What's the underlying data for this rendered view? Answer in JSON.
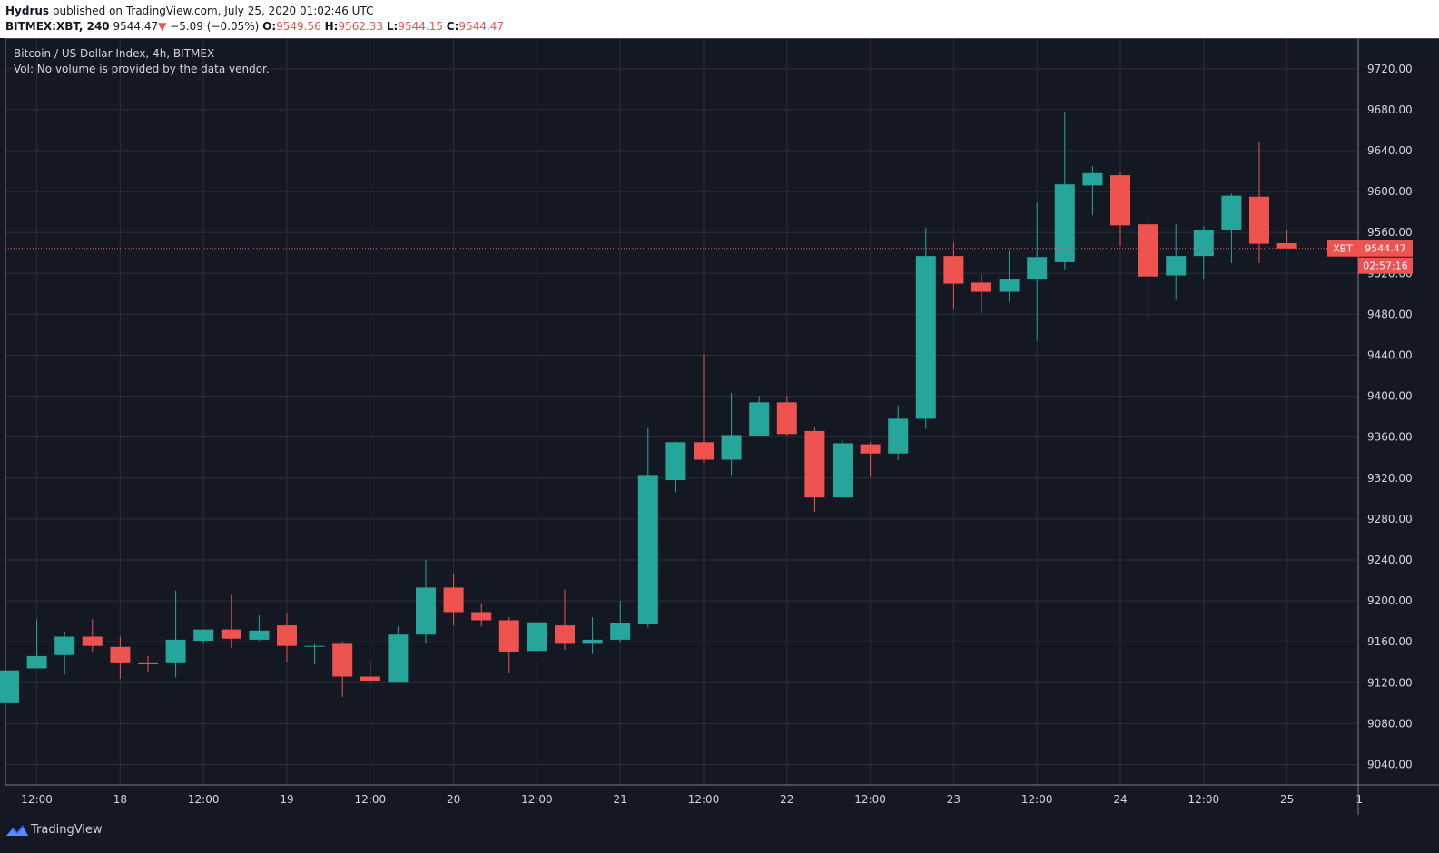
{
  "header": {
    "author": "Hydrus",
    "published_text": "published on TradingView.com, July 25, 2020 01:02:46 UTC",
    "symbol": "BITMEX:XBT, 240",
    "last": "9544.47",
    "change": "−5.09 (−0.05%)",
    "open_label": "O:",
    "open": "9549.56",
    "high_label": "H:",
    "high": "9562.33",
    "low_label": "L:",
    "low": "9544.15",
    "close_label": "C:",
    "close": "9544.47",
    "down_arrow": "▼"
  },
  "legend": {
    "title": "Bitcoin / US Dollar Index, 4h, BITMEX",
    "volume_note": "Vol: No volume is provided by the data vendor."
  },
  "footer": {
    "brand": "TradingView"
  },
  "colors": {
    "up": "#26a69a",
    "down": "#ef5350",
    "grid": "#2a2e39",
    "background": "#141823",
    "axis_text": "#d1d4dc"
  },
  "chart_data": {
    "type": "candlestick",
    "interval": "4h",
    "ylim": [
      9020,
      9750
    ],
    "y_ticks": [
      9040,
      9080,
      9120,
      9160,
      9200,
      9240,
      9280,
      9320,
      9360,
      9400,
      9440,
      9480,
      9520,
      9560,
      9600,
      9640,
      9680,
      9720
    ],
    "y_tick_labels": [
      "9040.00",
      "9080.00",
      "9120.00",
      "9160.00",
      "9200.00",
      "9240.00",
      "9280.00",
      "9320.00",
      "9360.00",
      "9400.00",
      "9440.00",
      "9480.00",
      "9520.00",
      "9560.00",
      "9600.00",
      "9640.00",
      "9680.00",
      "9720.00"
    ],
    "x_ticks": [
      {
        "index": 1,
        "label": "12:00"
      },
      {
        "index": 4,
        "label": "18"
      },
      {
        "index": 7,
        "label": "12:00"
      },
      {
        "index": 10,
        "label": "19"
      },
      {
        "index": 13,
        "label": "12:00"
      },
      {
        "index": 16,
        "label": "20"
      },
      {
        "index": 19,
        "label": "12:00"
      },
      {
        "index": 22,
        "label": "21"
      },
      {
        "index": 25,
        "label": "12:00"
      },
      {
        "index": 28,
        "label": "22"
      },
      {
        "index": 31,
        "label": "12:00"
      },
      {
        "index": 34,
        "label": "23"
      },
      {
        "index": 37,
        "label": "12:00"
      },
      {
        "index": 40,
        "label": "24"
      },
      {
        "index": 43,
        "label": "12:00"
      },
      {
        "index": 46,
        "label": "25"
      },
      {
        "index": 48.6,
        "label": "1"
      }
    ],
    "candles": [
      {
        "o": 9100,
        "h": 9132,
        "l": 9100,
        "c": 9132
      },
      {
        "o": 9134,
        "h": 9182,
        "l": 9134,
        "c": 9146
      },
      {
        "o": 9147,
        "h": 9170,
        "l": 9128,
        "c": 9165
      },
      {
        "o": 9165,
        "h": 9182,
        "l": 9150,
        "c": 9156
      },
      {
        "o": 9155,
        "h": 9165,
        "l": 9124,
        "c": 9139
      },
      {
        "o": 9139,
        "h": 9146,
        "l": 9130,
        "c": 9138
      },
      {
        "o": 9139,
        "h": 9210,
        "l": 9125,
        "c": 9162
      },
      {
        "o": 9161,
        "h": 9172,
        "l": 9158,
        "c": 9172
      },
      {
        "o": 9172,
        "h": 9206,
        "l": 9154,
        "c": 9163
      },
      {
        "o": 9162,
        "h": 9186,
        "l": 9161,
        "c": 9171
      },
      {
        "o": 9176,
        "h": 9188,
        "l": 9140,
        "c": 9156
      },
      {
        "o": 9156,
        "h": 9158,
        "l": 9138,
        "c": 9156
      },
      {
        "o": 9158,
        "h": 9160,
        "l": 9106,
        "c": 9126
      },
      {
        "o": 9126,
        "h": 9141,
        "l": 9118,
        "c": 9122
      },
      {
        "o": 9120,
        "h": 9175,
        "l": 9120,
        "c": 9167
      },
      {
        "o": 9167,
        "h": 9240,
        "l": 9158,
        "c": 9213
      },
      {
        "o": 9213,
        "h": 9226,
        "l": 9176,
        "c": 9189
      },
      {
        "o": 9189,
        "h": 9197,
        "l": 9175,
        "c": 9181
      },
      {
        "o": 9181,
        "h": 9184,
        "l": 9129,
        "c": 9150
      },
      {
        "o": 9151,
        "h": 9179,
        "l": 9144,
        "c": 9179
      },
      {
        "o": 9176,
        "h": 9211,
        "l": 9152,
        "c": 9158
      },
      {
        "o": 9158,
        "h": 9184,
        "l": 9148,
        "c": 9162
      },
      {
        "o": 9162,
        "h": 9200,
        "l": 9160,
        "c": 9178
      },
      {
        "o": 9177,
        "h": 9369,
        "l": 9174,
        "c": 9323
      },
      {
        "o": 9318,
        "h": 9356,
        "l": 9306,
        "c": 9355
      },
      {
        "o": 9355,
        "h": 9441,
        "l": 9335,
        "c": 9338
      },
      {
        "o": 9338,
        "h": 9403,
        "l": 9323,
        "c": 9362
      },
      {
        "o": 9361,
        "h": 9400,
        "l": 9361,
        "c": 9394
      },
      {
        "o": 9394,
        "h": 9400,
        "l": 9361,
        "c": 9363
      },
      {
        "o": 9366,
        "h": 9370,
        "l": 9287,
        "c": 9301
      },
      {
        "o": 9301,
        "h": 9357,
        "l": 9301,
        "c": 9354
      },
      {
        "o": 9353,
        "h": 9355,
        "l": 9321,
        "c": 9344
      },
      {
        "o": 9344,
        "h": 9391,
        "l": 9338,
        "c": 9378
      },
      {
        "o": 9378,
        "h": 9565,
        "l": 9368,
        "c": 9537
      },
      {
        "o": 9537,
        "h": 9550,
        "l": 9485,
        "c": 9510
      },
      {
        "o": 9511,
        "h": 9519,
        "l": 9481,
        "c": 9502
      },
      {
        "o": 9502,
        "h": 9542,
        "l": 9492,
        "c": 9514
      },
      {
        "o": 9514,
        "h": 9589,
        "l": 9454,
        "c": 9536
      },
      {
        "o": 9531,
        "h": 9678,
        "l": 9524,
        "c": 9607
      },
      {
        "o": 9606,
        "h": 9625,
        "l": 9577,
        "c": 9618
      },
      {
        "o": 9616,
        "h": 9620,
        "l": 9547,
        "c": 9567
      },
      {
        "o": 9568,
        "h": 9577,
        "l": 9474,
        "c": 9517
      },
      {
        "o": 9518,
        "h": 9568,
        "l": 9494,
        "c": 9537
      },
      {
        "o": 9537,
        "h": 9566,
        "l": 9514,
        "c": 9562
      },
      {
        "o": 9562,
        "h": 9598,
        "l": 9530,
        "c": 9596
      },
      {
        "o": 9595,
        "h": 9649,
        "l": 9530,
        "c": 9549
      },
      {
        "o": 9549.56,
        "h": 9562.33,
        "l": 9544.15,
        "c": 9544.47
      }
    ],
    "last_price": {
      "symbol": "XBT",
      "value": "9544.47",
      "price": 9544.47,
      "countdown": "02:57:16"
    }
  }
}
